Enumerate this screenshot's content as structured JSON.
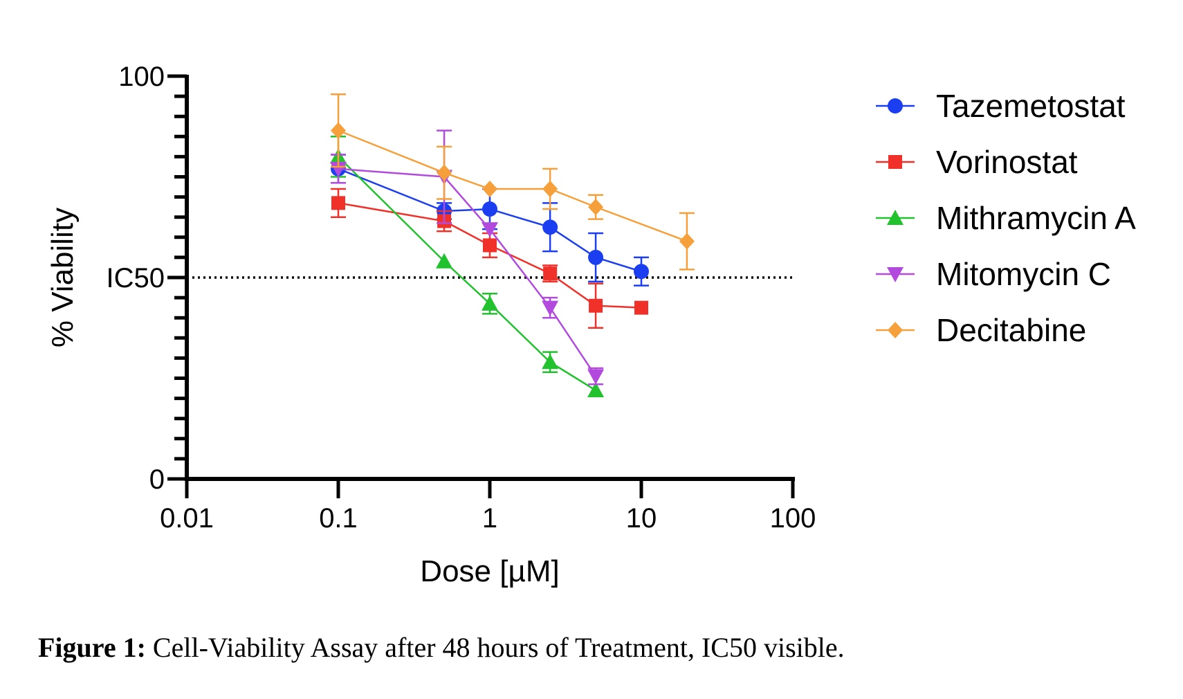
{
  "chart_data": {
    "type": "line",
    "xscale": "log",
    "xlabel": "Dose [µM]",
    "ylabel": "% Viability",
    "xlim": [
      0.01,
      100
    ],
    "ylim": [
      0,
      100
    ],
    "x_ticks": [
      0.01,
      0.1,
      1,
      10,
      100
    ],
    "x_tick_labels": [
      "0.01",
      "0.1",
      "1",
      "10",
      "100"
    ],
    "y_tick_labels": [
      "0",
      "100"
    ],
    "y_minor_step": 5,
    "ic50": {
      "label": "IC50",
      "value": 50
    },
    "legend_position": "right",
    "series": [
      {
        "name": "Tazemetostat",
        "color": "#1a3ef0",
        "marker": "circle",
        "x": [
          0.1,
          0.5,
          1,
          2.5,
          5,
          10
        ],
        "y": [
          77,
          66.5,
          67,
          62.5,
          55,
          51.5
        ],
        "err": [
          3.5,
          2,
          5,
          6,
          6,
          3.5
        ]
      },
      {
        "name": "Vorinostat",
        "color": "#f0312a",
        "marker": "square",
        "x": [
          0.1,
          0.5,
          1,
          2.5,
          5,
          10
        ],
        "y": [
          68.5,
          64,
          58,
          51,
          43,
          42.5
        ],
        "err": [
          3.5,
          2.5,
          3,
          2,
          5.5,
          0
        ]
      },
      {
        "name": "Mithramycin A",
        "color": "#22c22e",
        "marker": "triangle-up",
        "x": [
          0.1,
          0.5,
          1,
          2.5,
          5
        ],
        "y": [
          80,
          54,
          43.5,
          29,
          22
        ],
        "err": [
          5,
          0,
          2.5,
          2.5,
          0
        ]
      },
      {
        "name": "Mitomycin C",
        "color": "#b24bdd",
        "marker": "triangle-down",
        "x": [
          0.1,
          0.5,
          1,
          2.5,
          5
        ],
        "y": [
          77,
          75,
          62,
          42.5,
          25.5
        ],
        "err": [
          3.5,
          11.5,
          0,
          2.5,
          2
        ]
      },
      {
        "name": "Decitabine",
        "color": "#f5a03a",
        "marker": "diamond",
        "x": [
          0.1,
          0.5,
          1,
          2.5,
          5,
          20
        ],
        "y": [
          86.5,
          76,
          72,
          72,
          67.5,
          59
        ],
        "err": [
          9,
          6.5,
          0,
          5,
          3,
          7
        ]
      }
    ]
  },
  "caption": {
    "label": "Figure 1:",
    "text": " Cell-Viability Assay after 48 hours of Treatment, IC50 visible."
  }
}
